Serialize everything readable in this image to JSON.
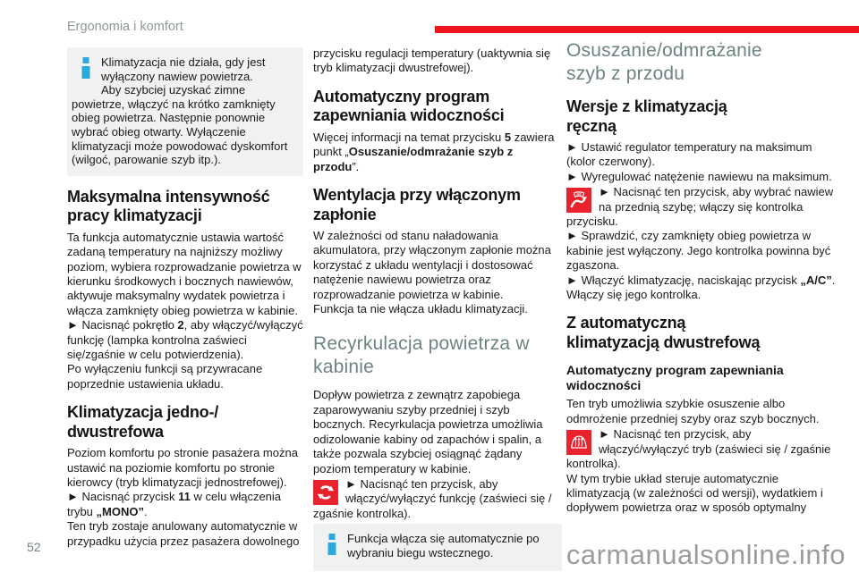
{
  "page": {
    "header": "Ergonomia i komfort",
    "page_number": "52",
    "watermark": "carmanualsonline.info"
  },
  "colors": {
    "chapter_bar_red": "#f0161f",
    "icon_button_red": "#e8232d",
    "info_icon_blue": "#2ba9dc",
    "section_heading_teal": "#6c8482",
    "info_box_gray": "#f0f1f1",
    "watermark_gray": "#9c9c9c"
  },
  "columns": {
    "left": [
      {
        "type": "infobox",
        "lead": "Klimatyzacja nie działa, gdy jest wyłączony nawiew powietrza.",
        "body": "Aby szybciej uzyskać zimne powietrze, włączyć na krótko zamknięty obieg powietrza. Następnie ponownie wybrać obieg otwarty. Wyłączenie klimatyzacji może powodować dyskomfort (wilgoć, parowanie szyb itp.)."
      },
      {
        "type": "h2",
        "text": "Maksymalna intensywność\npracy klimatyzacji"
      },
      {
        "type": "p",
        "text": "Ta funkcja automatycznie ustawia wartość zadaną temperatury na najniższy możliwy poziom, wybiera rozprowadzanie powietrza w kierunku środkowych i bocznych nawiewów, aktywuje maksymalny wydatek powietrza i włącza zamknięty obieg powietrza w kabinie."
      },
      {
        "type": "p",
        "text": [
          {
            "t": "►  Nacisnąć pokrętło "
          },
          {
            "t": "2",
            "b": true
          },
          {
            "t": ", aby włączyć/wyłączyć funkcję (lampka kontrolna zaświeci się/zgaśnie w celu potwierdzenia)."
          }
        ]
      },
      {
        "type": "p",
        "text": "Po wyłączeniu funkcji są przywracane poprzednie ustawienia układu."
      },
      {
        "type": "h2",
        "text": "Klimatyzacja jedno-/\ndwustrefowa"
      },
      {
        "type": "p",
        "text": "Poziom komfortu po stronie pasażera można ustawić na poziomie komfortu po stronie kierowcy (tryb klimatyzacji jednostrefowej)."
      },
      {
        "type": "p",
        "text": [
          {
            "t": "►  Nacisnąć przycisk "
          },
          {
            "t": "11",
            "b": true
          },
          {
            "t": " w celu włączenia trybu "
          },
          {
            "t": "„MONO”",
            "b": true
          },
          {
            "t": "."
          }
        ]
      },
      {
        "type": "p",
        "text": "Ten tryb zostaje anulowany automatycznie w przypadku użycia przez pasażera dowolnego"
      }
    ],
    "middle": [
      {
        "type": "p",
        "text": "przycisku regulacji temperatury (uaktywnia się tryb klimatyzacji dwustrefowej)."
      },
      {
        "type": "h2",
        "text": "Automatyczny program\nzapewniania widoczności"
      },
      {
        "type": "p",
        "text": [
          {
            "t": "Więcej informacji na temat przycisku "
          },
          {
            "t": "5",
            "b": true
          },
          {
            "t": " zawiera punkt „"
          },
          {
            "t": "Osuszanie/odmrażanie szyb z przodu",
            "b": true
          },
          {
            "t": "”."
          }
        ]
      },
      {
        "type": "h2",
        "text": "Wentylacja przy włączonym\nzapłonie"
      },
      {
        "type": "p",
        "text": "W zależności od stanu naładowania akumulatora, przy włączonym zapłonie można korzystać z układu wentylacji i dostosować natężenie nawiewu powietrza oraz rozprowadzanie powietrza w kabinie."
      },
      {
        "type": "p",
        "text": "Funkcja ta nie włącza układu klimatyzacji."
      },
      {
        "type": "h1",
        "text": "Recyrkulacja powietrza w\nkabinie"
      },
      {
        "type": "p",
        "text": "Dopływ powietrza z zewnątrz zapobiega zaparowywaniu szyby przedniej i szyb bocznych. Recyrkulacja powietrza umożliwia odizolowanie kabiny od zapachów i spalin, a także pozwala szybciej osiągnąć żądany poziom temperatury w kabinie."
      },
      {
        "type": "picon",
        "icon": "air-recirculation-icon",
        "text": [
          {
            "t": "►  Nacisnąć ten przycisk, aby włączyć/wyłączyć funkcję (zaświeci się / zgaśnie kontrolka)."
          }
        ]
      },
      {
        "type": "infobox",
        "lead": "Funkcja włącza się automatycznie po wybraniu biegu wstecznego."
      }
    ],
    "right": [
      {
        "type": "h1",
        "text": "Osuszanie/odmrażanie\nszyb z przodu"
      },
      {
        "type": "h2",
        "text": "Wersje z klimatyzacją\nręczną"
      },
      {
        "type": "p",
        "text": "►  Ustawić regulator temperatury na maksimum (kolor czerwony)."
      },
      {
        "type": "p",
        "text": "►  Wyregulować natężenie nawiewu na maksimum."
      },
      {
        "type": "picon",
        "icon": "windshield-airflow-icon",
        "text": [
          {
            "t": "►  Nacisnąć ten przycisk, aby wybrać nawiew na przednią szybę; włączy się kontrolka przycisku."
          }
        ]
      },
      {
        "type": "p",
        "text": "►  Sprawdzić, czy zamknięty obieg powietrza w kabinie jest wyłączony. Jego kontrolka powinna być zgaszona."
      },
      {
        "type": "p",
        "text": [
          {
            "t": "►  Włączyć klimatyzację, naciskając przycisk "
          },
          {
            "t": "„A/C”",
            "b": true
          },
          {
            "t": ". Włączy się jego kontrolka."
          }
        ]
      },
      {
        "type": "h2",
        "text": "Z automatyczną\nklimatyzacją dwustrefową"
      },
      {
        "type": "h3",
        "text": "Automatyczny program zapewniania\nwidoczności"
      },
      {
        "type": "p",
        "text": "Ten tryb umożliwia szybkie osuszenie albo odmrożenie przedniej szyby oraz szyb bocznych."
      },
      {
        "type": "picon",
        "icon": "windshield-defrost-icon",
        "text": [
          {
            "t": "►  Nacisnąć ten przycisk, aby włączyć/wyłączyć tryb (zaświeci się / zgaśnie kontrolka)."
          }
        ]
      },
      {
        "type": "p",
        "text": "W tym trybie układ steruje automatycznie klimatyzacją (w zależności od wersji), wydatkiem i dopływem powietrza oraz w sposób optymalny"
      }
    ]
  }
}
